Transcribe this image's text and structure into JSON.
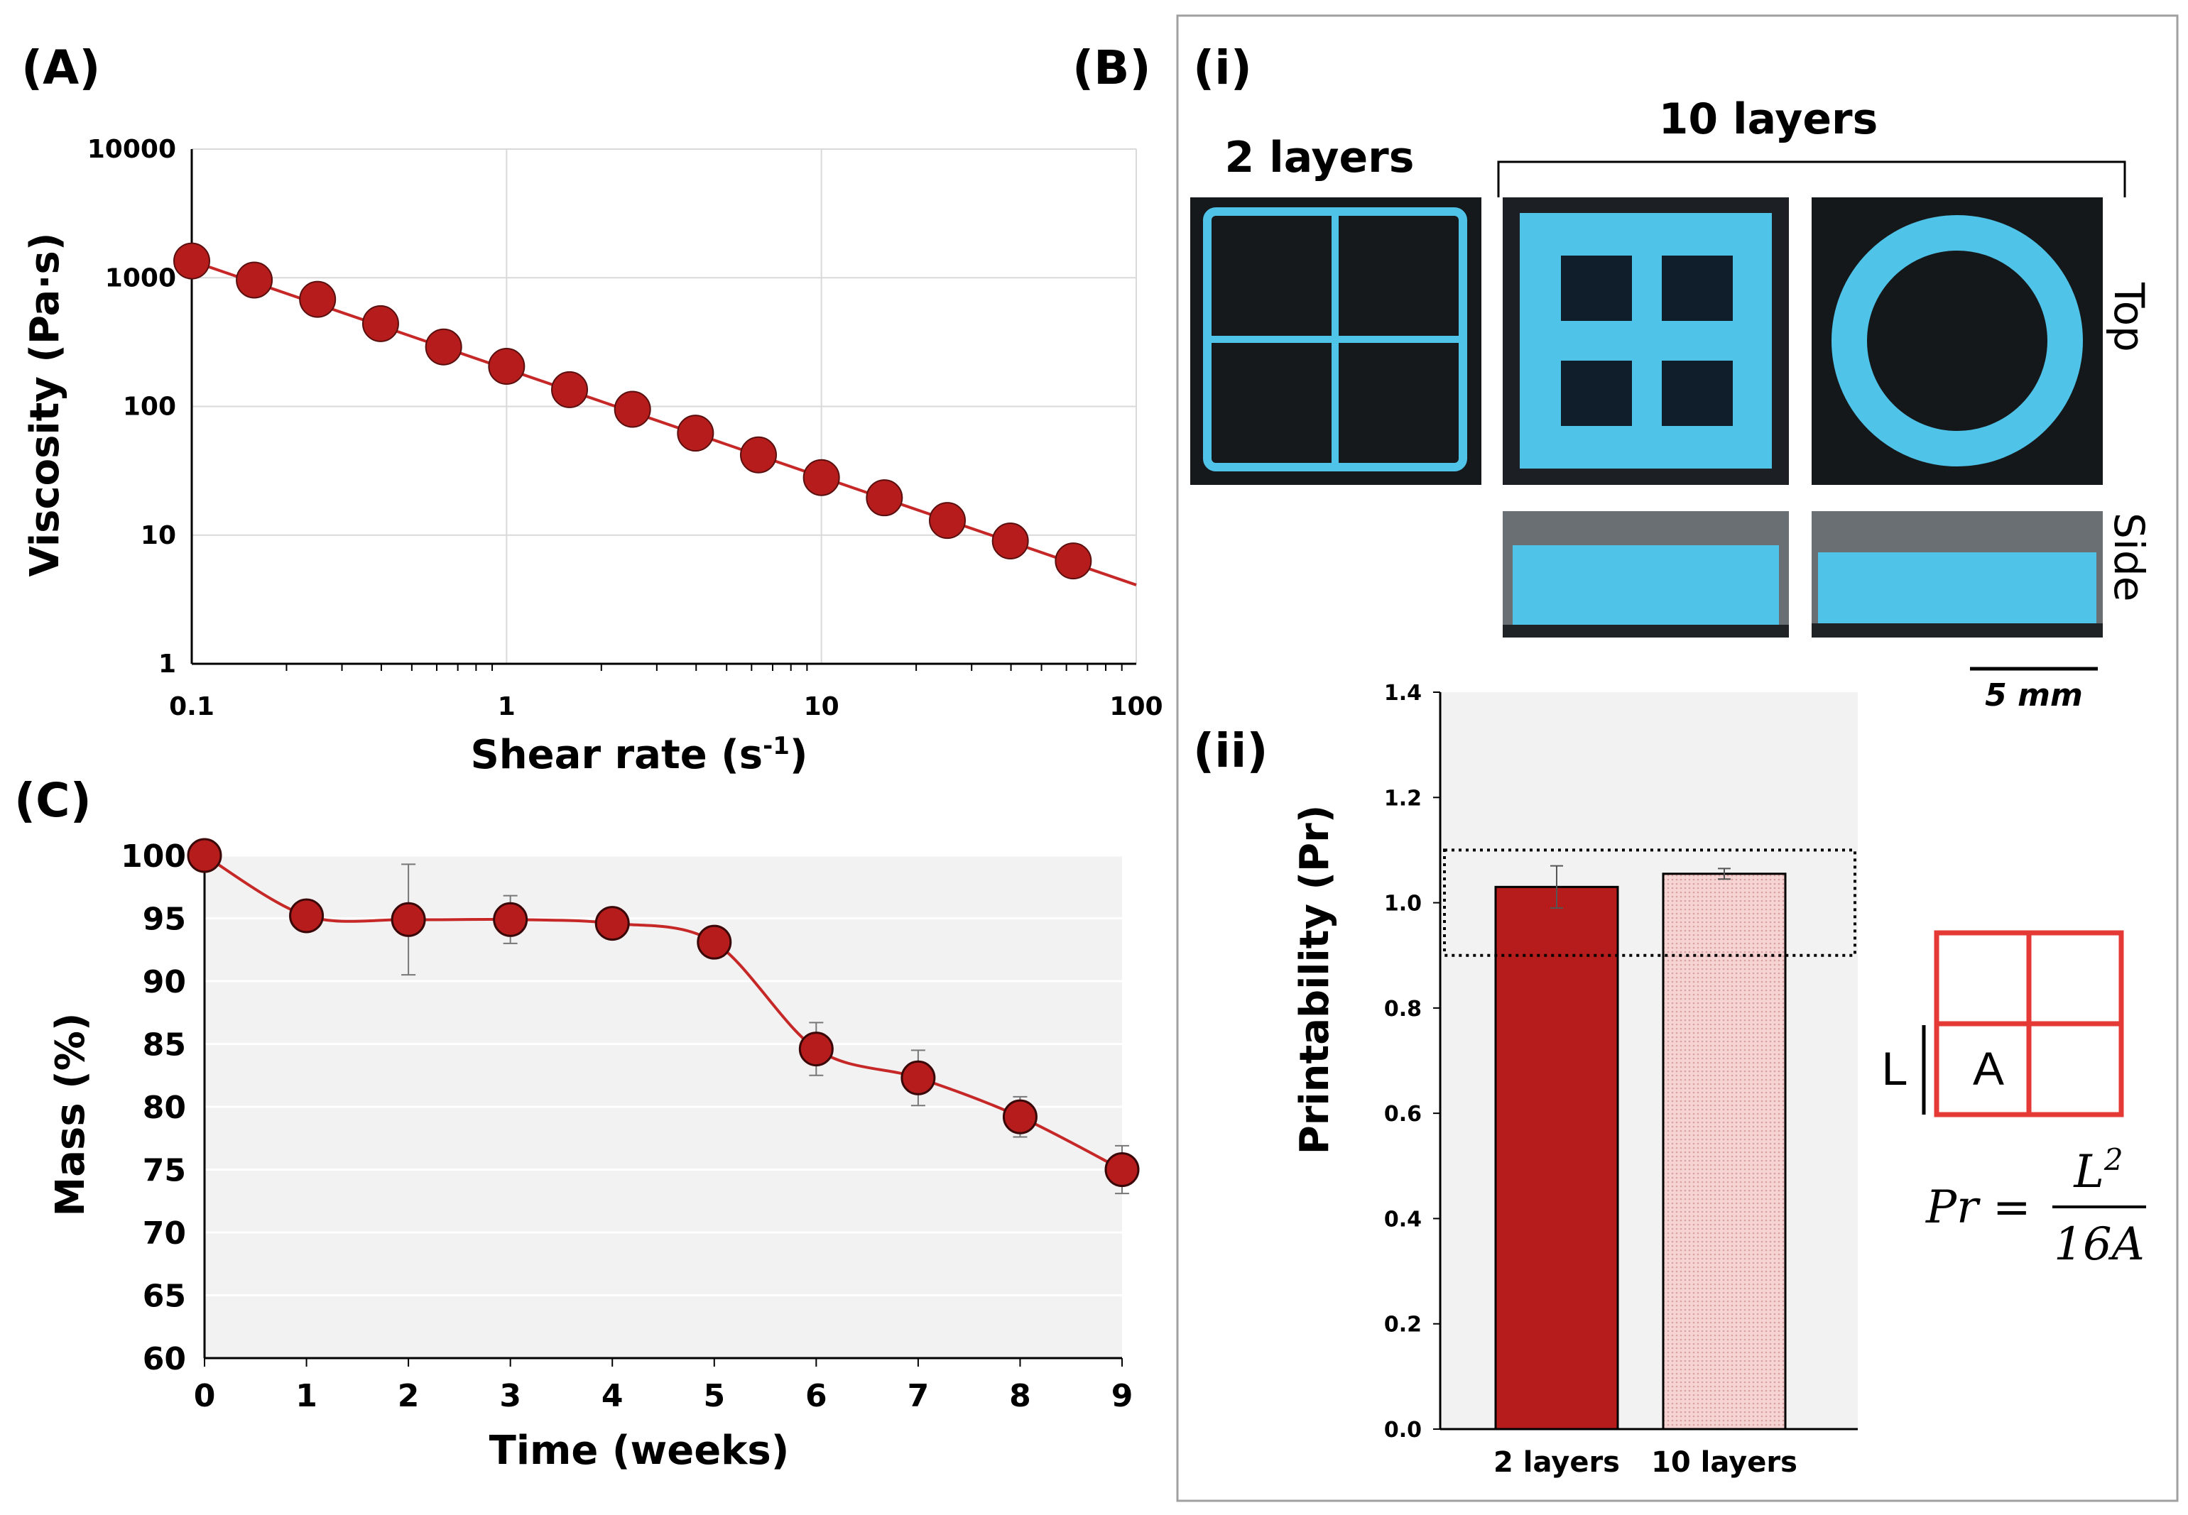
{
  "panel_labels": {
    "a": "(A)",
    "b": "(B)",
    "b_i": "(i)",
    "b_ii": "(ii)",
    "c": "(C)"
  },
  "photos": {
    "label_2layers": "2 layers",
    "label_10layers": "10 layers",
    "label_top": "Top",
    "label_side": "Side",
    "scale_bar": "5 mm",
    "color": "#4fc3e8"
  },
  "schematic": {
    "L": "L",
    "A": "A",
    "formula_lhs": "Pr =",
    "formula_num": "L",
    "formula_num_exp": "2",
    "formula_den": "16A",
    "stroke_color": "#e53935"
  },
  "chart_data": [
    {
      "id": "A",
      "type": "line",
      "scale": "log-log",
      "xlabel": "Shear rate (s",
      "xlabel_sup": "-1",
      "xlabel_end": ")",
      "ylabel": "Viscosity (Pa·s)",
      "xlim": [
        0.1,
        100
      ],
      "ylim": [
        1,
        10000
      ],
      "xticks": [
        "0.1",
        "1",
        "10",
        "100"
      ],
      "yticks": [
        "1",
        "10",
        "100",
        "1000",
        "10000"
      ],
      "x": [
        0.1,
        0.158,
        0.251,
        0.398,
        0.631,
        1.0,
        1.585,
        2.512,
        3.981,
        6.31,
        10.0,
        15.85,
        25.12,
        39.81,
        63.1
      ],
      "y": [
        1350,
        960,
        680,
        440,
        290,
        205,
        135,
        95,
        62,
        42,
        28,
        19.5,
        13,
        9,
        6.3
      ],
      "fit": {
        "x": [
          0.1,
          100
        ],
        "y": [
          1350,
          4.1
        ]
      },
      "marker_color": "#b71c1c",
      "line_color": "#c62828",
      "grid": true
    },
    {
      "id": "C",
      "type": "line",
      "xlabel": "Time (weeks)",
      "ylabel": "Mass  (%)",
      "xlim": [
        0,
        9
      ],
      "ylim": [
        60,
        100
      ],
      "xticks": [
        "0",
        "1",
        "2",
        "3",
        "4",
        "5",
        "6",
        "7",
        "8",
        "9"
      ],
      "yticks": [
        "60",
        "65",
        "70",
        "75",
        "80",
        "85",
        "90",
        "95",
        "100"
      ],
      "x": [
        0,
        1,
        2,
        3,
        4,
        5,
        6,
        7,
        8,
        9
      ],
      "y": [
        100,
        95.2,
        94.9,
        94.9,
        94.6,
        93.1,
        84.6,
        82.3,
        79.2,
        75.0
      ],
      "err": [
        0,
        1.2,
        4.4,
        1.9,
        0,
        0,
        2.1,
        2.2,
        1.6,
        1.9
      ],
      "marker_color": "#b71c1c",
      "line_color": "#c62828",
      "plot_bg": "#f2f2f2",
      "grid": true
    },
    {
      "id": "B-ii",
      "type": "bar",
      "ylabel": "Printability (Pr)",
      "categories": [
        "2 layers",
        "10 layers"
      ],
      "values": [
        1.03,
        1.055
      ],
      "err": [
        0.04,
        0.01
      ],
      "ylim": [
        0,
        1.4
      ],
      "yticks": [
        "0.0",
        "0.2",
        "0.4",
        "0.6",
        "0.8",
        "1.0",
        "1.2",
        "1.4"
      ],
      "reference_band": [
        0.9,
        1.1
      ],
      "bar_colors": [
        "#b71c1c",
        "#f4c2c2"
      ],
      "plot_bg": "#f2f2f2"
    }
  ]
}
